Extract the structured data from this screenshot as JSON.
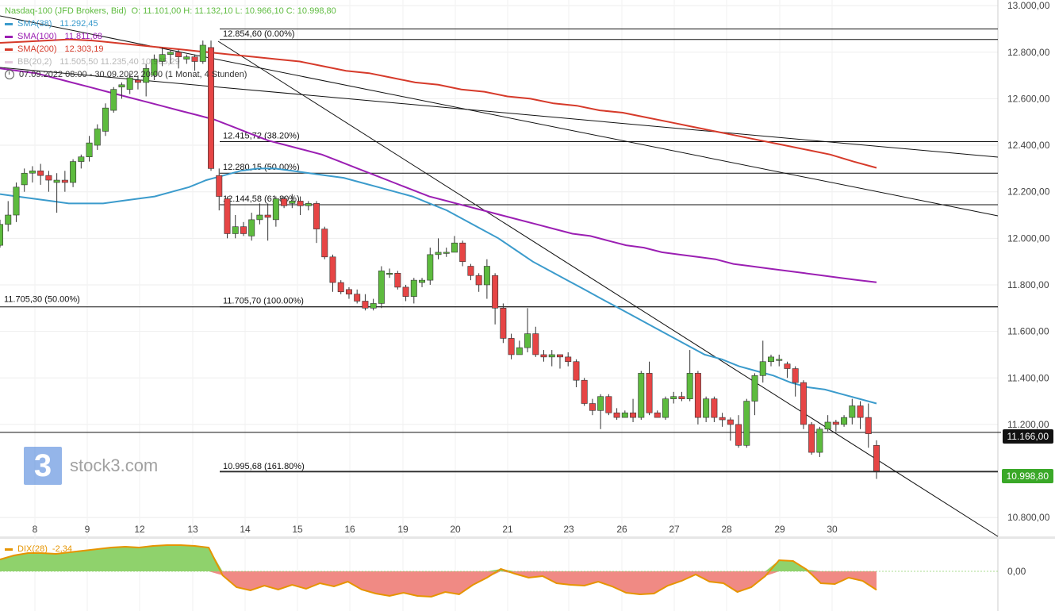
{
  "legend": {
    "instrument": "Nasdaq-100 (JFD Brokers, Bid)",
    "ohlc": "O: 11.101,00   H: 11.132,10   L: 10.966,10   C: 10.998,80",
    "sma38_label": "SMA(38)",
    "sma38_value": "11.292,45",
    "sma100_label": "SMA(100)",
    "sma100_value": "11.811,68",
    "sma200_label": "SMA(200)",
    "sma200_value": "12.303,19",
    "bb_label": "BB(20,2)",
    "bb_value": "11.505,50   11.235,40   10.965,29",
    "period": "07.09.2022 08:00 - 30.09.2022 20:00   (1 Monat, 4 Stunden)"
  },
  "colors": {
    "up": "#5dbb3e",
    "down": "#e64545",
    "sma38": "#3b9bcc",
    "sma100": "#9b1fb3",
    "sma200": "#d63a2a",
    "dix": "#e69400",
    "badge_dark": "#111111",
    "badge_green": "#3aa828"
  },
  "watermark": {
    "text": "stock3.com",
    "logo": "3"
  },
  "price_badges": {
    "current_line": "11.166,00",
    "last_price": "10.998,80"
  },
  "dix": {
    "label": "DIX(28)",
    "value": "-2,34",
    "zero_label": "0,00"
  },
  "chart_data": {
    "type": "candlestick",
    "y_axis": {
      "min": 10700,
      "max": 13000,
      "ticks": [
        "13.000,00",
        "12.800,00",
        "12.600,00",
        "12.400,00",
        "12.200,00",
        "12.000,00",
        "11.800,00",
        "11.600,00",
        "11.400,00",
        "11.200,00",
        "10.800,00"
      ]
    },
    "x_axis_labels": [
      "8",
      "9",
      "12",
      "13",
      "14",
      "15",
      "16",
      "19",
      "20",
      "21",
      "23",
      "26",
      "27",
      "28",
      "29",
      "30"
    ],
    "fib_levels": [
      {
        "label": "12.854,60 (0.00%)",
        "price": 12854.6
      },
      {
        "label": "12.415,72 (38.20%)",
        "price": 12415.72
      },
      {
        "label": "12.280,15 (50.00%)",
        "price": 12280.15
      },
      {
        "label": "12.144,58 (61.80%)",
        "price": 12144.58
      },
      {
        "label": "11.705,70 (100.00%)",
        "price": 11705.7
      },
      {
        "label": "10.995,68 (161.80%)",
        "price": 10995.68
      }
    ],
    "left_level": {
      "label": "11.705,30 (50.00%)",
      "price": 11705.3
    },
    "candles": [
      [
        11970,
        12060,
        11960,
        12080
      ],
      [
        12060,
        12100,
        12030,
        12160
      ],
      [
        12100,
        12220,
        12070,
        12240
      ],
      [
        12230,
        12280,
        12200,
        12300
      ],
      [
        12280,
        12290,
        12240,
        12310
      ],
      [
        12290,
        12270,
        12230,
        12320
      ],
      [
        12270,
        12250,
        12200,
        12290
      ],
      [
        12240,
        12250,
        12110,
        12280
      ],
      [
        12250,
        12240,
        12200,
        12290
      ],
      [
        12240,
        12330,
        12220,
        12340
      ],
      [
        12330,
        12350,
        12300,
        12360
      ],
      [
        12350,
        12410,
        12330,
        12440
      ],
      [
        12400,
        12470,
        12380,
        12490
      ],
      [
        12460,
        12560,
        12440,
        12580
      ],
      [
        12550,
        12640,
        12540,
        12650
      ],
      [
        12650,
        12660,
        12600,
        12670
      ],
      [
        12640,
        12690,
        12620,
        12710
      ],
      [
        12680,
        12670,
        12640,
        12700
      ],
      [
        12670,
        12730,
        12610,
        12750
      ],
      [
        12700,
        12770,
        12680,
        12790
      ],
      [
        12760,
        12790,
        12740,
        12820
      ],
      [
        12790,
        12800,
        12750,
        12810
      ],
      [
        12800,
        12780,
        12730,
        12810
      ],
      [
        12770,
        12780,
        12750,
        12790
      ],
      [
        12780,
        12760,
        12720,
        12790
      ],
      [
        12760,
        12830,
        12750,
        12850
      ],
      [
        12820,
        12300,
        12290,
        12850
      ],
      [
        12270,
        12180,
        12120,
        12300
      ],
      [
        12170,
        12020,
        12000,
        12180
      ],
      [
        12020,
        12050,
        12000,
        12100
      ],
      [
        12050,
        12020,
        12010,
        12070
      ],
      [
        12010,
        12080,
        11990,
        12110
      ],
      [
        12080,
        12100,
        12060,
        12150
      ],
      [
        12100,
        12090,
        11990,
        12150
      ],
      [
        12080,
        12170,
        12050,
        12180
      ],
      [
        12170,
        12140,
        12130,
        12180
      ],
      [
        12150,
        12160,
        12130,
        12190
      ],
      [
        12160,
        12140,
        12100,
        12180
      ],
      [
        12140,
        12150,
        12120,
        12160
      ],
      [
        12150,
        12040,
        11980,
        12160
      ],
      [
        12040,
        11920,
        11910,
        12050
      ],
      [
        11920,
        11810,
        11770,
        11930
      ],
      [
        11810,
        11770,
        11760,
        11820
      ],
      [
        11780,
        11760,
        11740,
        11790
      ],
      [
        11760,
        11730,
        11720,
        11780
      ],
      [
        11730,
        11700,
        11690,
        11760
      ],
      [
        11700,
        11720,
        11690,
        11740
      ],
      [
        11720,
        11860,
        11700,
        11880
      ],
      [
        11850,
        11850,
        11830,
        11870
      ],
      [
        11850,
        11790,
        11780,
        11860
      ],
      [
        11790,
        11750,
        11730,
        11800
      ],
      [
        11750,
        11820,
        11720,
        11830
      ],
      [
        11810,
        11820,
        11790,
        11830
      ],
      [
        11820,
        11930,
        11800,
        11960
      ],
      [
        11930,
        11940,
        11910,
        12000
      ],
      [
        11940,
        11940,
        11920,
        11960
      ],
      [
        11940,
        11980,
        11960,
        12010
      ],
      [
        11980,
        11900,
        11880,
        11990
      ],
      [
        11880,
        11840,
        11820,
        11890
      ],
      [
        11840,
        11800,
        11770,
        11850
      ],
      [
        11800,
        11880,
        11740,
        11910
      ],
      [
        11840,
        11700,
        11630,
        11850
      ],
      [
        11700,
        11570,
        11550,
        11720
      ],
      [
        11570,
        11500,
        11480,
        11590
      ],
      [
        11500,
        11530,
        11510,
        11560
      ],
      [
        11530,
        11590,
        11510,
        11700
      ],
      [
        11590,
        11500,
        11490,
        11620
      ],
      [
        11500,
        11490,
        11470,
        11520
      ],
      [
        11490,
        11500,
        11450,
        11520
      ],
      [
        11500,
        11490,
        11440,
        11500
      ],
      [
        11490,
        11470,
        11450,
        11510
      ],
      [
        11470,
        11390,
        11360,
        11480
      ],
      [
        11390,
        11290,
        11280,
        11400
      ],
      [
        11290,
        11260,
        11240,
        11310
      ],
      [
        11260,
        11320,
        11180,
        11330
      ],
      [
        11320,
        11250,
        11240,
        11330
      ],
      [
        11250,
        11230,
        11220,
        11270
      ],
      [
        11230,
        11250,
        11230,
        11260
      ],
      [
        11250,
        11230,
        11210,
        11310
      ],
      [
        11230,
        11420,
        11220,
        11430
      ],
      [
        11420,
        11250,
        11240,
        11470
      ],
      [
        11250,
        11230,
        11230,
        11260
      ],
      [
        11230,
        11310,
        11220,
        11320
      ],
      [
        11310,
        11320,
        11290,
        11340
      ],
      [
        11320,
        11310,
        11300,
        11340
      ],
      [
        11310,
        11420,
        11300,
        11520
      ],
      [
        11420,
        11230,
        11200,
        11430
      ],
      [
        11230,
        11310,
        11210,
        11320
      ],
      [
        11310,
        11230,
        11210,
        11320
      ],
      [
        11230,
        11220,
        11190,
        11250
      ],
      [
        11220,
        11200,
        11130,
        11230
      ],
      [
        11200,
        11110,
        11100,
        11240
      ],
      [
        11110,
        11300,
        11100,
        11310
      ],
      [
        11300,
        11410,
        11240,
        11420
      ],
      [
        11410,
        11470,
        11380,
        11560
      ],
      [
        11470,
        11490,
        11450,
        11500
      ],
      [
        11480,
        11480,
        11450,
        11500
      ],
      [
        11460,
        11440,
        11400,
        11470
      ],
      [
        11440,
        11380,
        11320,
        11450
      ],
      [
        11380,
        11200,
        11180,
        11390
      ],
      [
        11200,
        11080,
        11070,
        11210
      ],
      [
        11080,
        11180,
        11060,
        11190
      ],
      [
        11180,
        11210,
        11170,
        11240
      ],
      [
        11210,
        11200,
        11170,
        11220
      ],
      [
        11200,
        11230,
        11190,
        11240
      ],
      [
        11230,
        11280,
        11200,
        11310
      ],
      [
        11280,
        11230,
        11180,
        11300
      ],
      [
        11230,
        11160,
        11100,
        11290
      ],
      [
        11110,
        11000,
        10966,
        11132
      ]
    ],
    "sma38": [
      12190,
      12180,
      12170,
      12160,
      12150,
      12150,
      12150,
      12160,
      12170,
      12180,
      12200,
      12220,
      12250,
      12270,
      12290,
      12300,
      12300,
      12290,
      12280,
      12270,
      12260,
      12240,
      12220,
      12200,
      12180,
      12150,
      12120,
      12080,
      12040,
      12000,
      11950,
      11900,
      11860,
      11820,
      11780,
      11740,
      11700,
      11660,
      11620,
      11580,
      11540,
      11500,
      11480,
      11450,
      11430,
      11410,
      11380,
      11360,
      11350,
      11330,
      11310,
      11290
    ],
    "sma100": [
      12730,
      12720,
      12710,
      12690,
      12670,
      12650,
      12630,
      12610,
      12590,
      12570,
      12550,
      12530,
      12510,
      12480,
      12450,
      12420,
      12400,
      12380,
      12360,
      12330,
      12300,
      12270,
      12240,
      12210,
      12180,
      12160,
      12140,
      12120,
      12100,
      12080,
      12060,
      12040,
      12020,
      12010,
      11990,
      11970,
      11960,
      11940,
      11930,
      11920,
      11910,
      11890,
      11880,
      11870,
      11860,
      11850,
      11840,
      11830,
      11820,
      11811
    ],
    "sma200": [
      12840,
      12845,
      12850,
      12855,
      12850,
      12840,
      12830,
      12820,
      12810,
      12800,
      12790,
      12780,
      12770,
      12760,
      12740,
      12720,
      12710,
      12690,
      12670,
      12660,
      12640,
      12630,
      12610,
      12600,
      12580,
      12570,
      12550,
      12540,
      12520,
      12500,
      12480,
      12460,
      12440,
      12420,
      12400,
      12380,
      12360,
      12330,
      12303
    ],
    "dix": [
      1.5,
      2,
      2.3,
      2.3,
      2.2,
      2.4,
      2.6,
      2.8,
      3,
      3.1,
      3,
      3.2,
      3.3,
      3.3,
      3.2,
      3,
      -0.5,
      -2,
      -2.4,
      -1.8,
      -2.3,
      -1.7,
      -2.2,
      -1.5,
      -1.9,
      -1.3,
      -2.3,
      -2.8,
      -3.1,
      -2.7,
      -3.1,
      -3.2,
      -2.6,
      -2.9,
      -1.7,
      -0.8,
      0.3,
      -0.3,
      -0.8,
      -0.6,
      -1.5,
      -1.7,
      -1.8,
      -1.3,
      -1.9,
      -2.7,
      -2.9,
      -2.8,
      -1.8,
      -1.2,
      -0.4,
      -1.3,
      -1.5,
      -2.6,
      -2,
      -0.6,
      1.4,
      1.3,
      0.2,
      -1.5,
      -1.6,
      -0.8,
      -1.2,
      -2.34
    ]
  }
}
